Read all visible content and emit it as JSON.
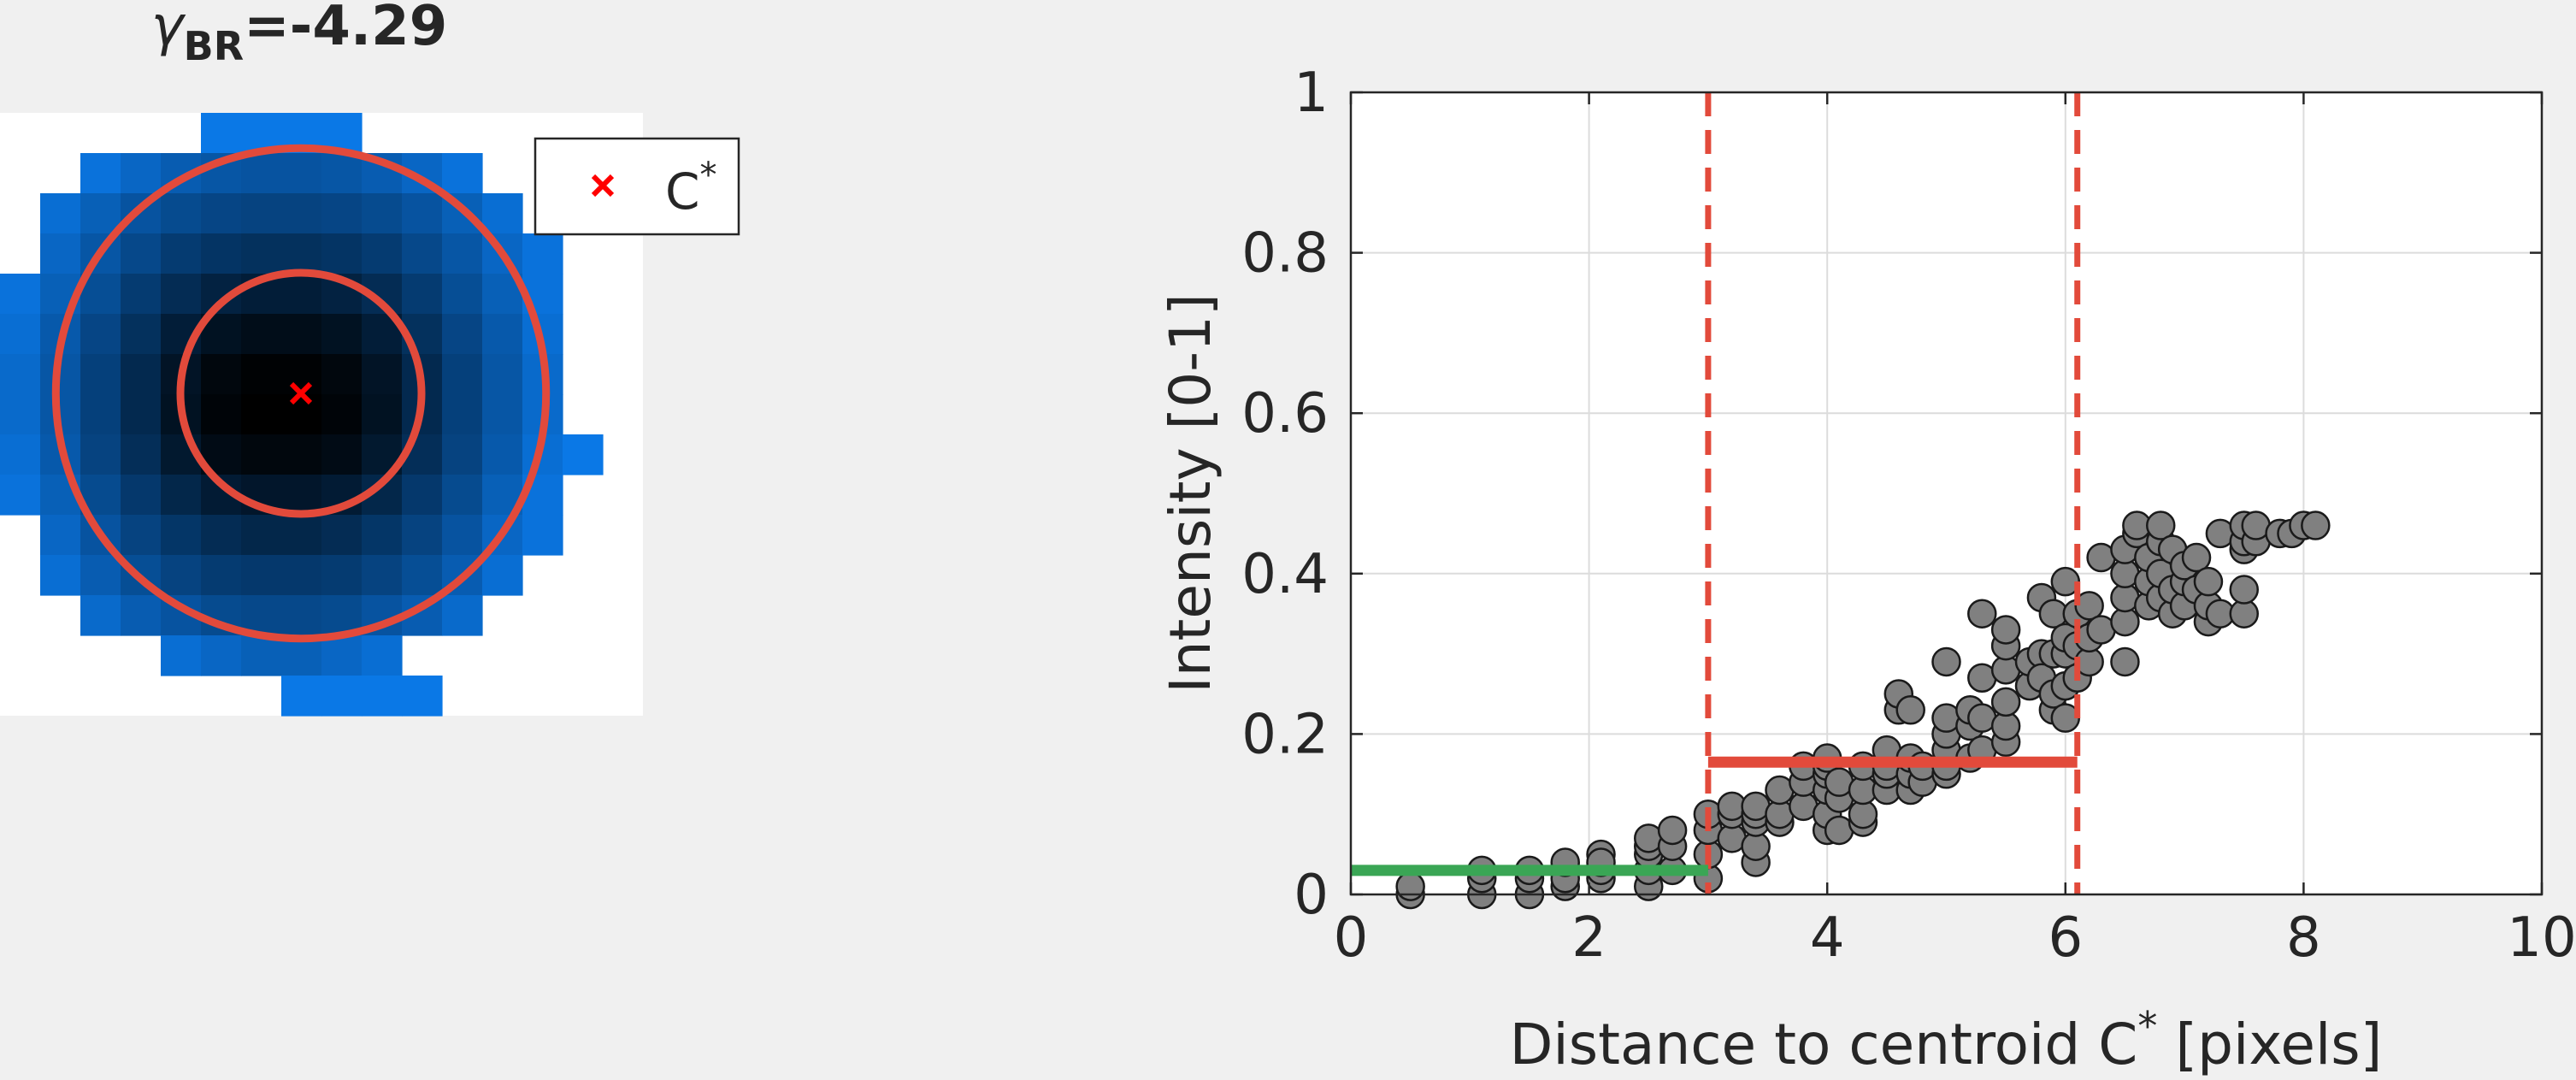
{
  "chart_data": [
    {
      "type": "heatmap",
      "title_symbol": "γ",
      "title_subscript": "BR",
      "title_value": "=-4.29",
      "legend_entries": [
        {
          "marker": "x",
          "color": "#ff0000",
          "label": "C",
          "label_sup": "*"
        }
      ],
      "colormap": [
        "#ffffff",
        "#0a78e6",
        "#000000"
      ],
      "centroid": {
        "row": 7,
        "col": 7.5
      },
      "inner_circle_radius": 3,
      "outer_circle_radius": 6.1,
      "circle_color": "#e24a3b",
      "grid": [
        [
          0,
          0,
          0,
          0,
          0,
          0.12,
          0.12,
          0.12,
          0.12,
          0,
          0,
          0,
          0,
          0,
          0,
          0
        ],
        [
          0,
          0,
          0.14,
          0.2,
          0.26,
          0.3,
          0.32,
          0.32,
          0.3,
          0.26,
          0.2,
          0.14,
          0,
          0,
          0,
          0
        ],
        [
          0,
          0.16,
          0.24,
          0.32,
          0.38,
          0.42,
          0.44,
          0.44,
          0.42,
          0.38,
          0.32,
          0.24,
          0.16,
          0,
          0,
          0
        ],
        [
          0,
          0.2,
          0.3,
          0.4,
          0.5,
          0.55,
          0.58,
          0.58,
          0.55,
          0.5,
          0.4,
          0.3,
          0.2,
          0.14,
          0,
          0
        ],
        [
          0.14,
          0.24,
          0.36,
          0.5,
          0.62,
          0.7,
          0.74,
          0.74,
          0.7,
          0.62,
          0.5,
          0.36,
          0.24,
          0.14,
          0,
          0
        ],
        [
          0.16,
          0.28,
          0.42,
          0.58,
          0.74,
          0.84,
          0.88,
          0.88,
          0.84,
          0.74,
          0.58,
          0.42,
          0.28,
          0.16,
          0,
          0
        ],
        [
          0.18,
          0.3,
          0.46,
          0.64,
          0.82,
          0.94,
          0.98,
          0.98,
          0.94,
          0.82,
          0.64,
          0.46,
          0.3,
          0.18,
          0,
          0
        ],
        [
          0.18,
          0.3,
          0.46,
          0.64,
          0.84,
          0.96,
          1,
          1,
          0.96,
          0.84,
          0.64,
          0.46,
          0.3,
          0.18,
          0,
          0
        ],
        [
          0.16,
          0.28,
          0.44,
          0.6,
          0.78,
          0.9,
          0.94,
          0.94,
          0.9,
          0.78,
          0.6,
          0.44,
          0.28,
          0.16,
          0.12,
          0
        ],
        [
          0.14,
          0.24,
          0.38,
          0.52,
          0.66,
          0.76,
          0.8,
          0.8,
          0.76,
          0.66,
          0.52,
          0.38,
          0.24,
          0.14,
          0,
          0
        ],
        [
          0,
          0.2,
          0.32,
          0.44,
          0.54,
          0.62,
          0.66,
          0.66,
          0.62,
          0.54,
          0.44,
          0.32,
          0.2,
          0.14,
          0,
          0
        ],
        [
          0,
          0.16,
          0.26,
          0.36,
          0.44,
          0.5,
          0.52,
          0.52,
          0.5,
          0.44,
          0.36,
          0.26,
          0.16,
          0,
          0,
          0
        ],
        [
          0,
          0,
          0.18,
          0.26,
          0.32,
          0.38,
          0.4,
          0.4,
          0.38,
          0.32,
          0.26,
          0.18,
          0,
          0,
          0,
          0
        ],
        [
          0,
          0,
          0,
          0,
          0.16,
          0.2,
          0.24,
          0.24,
          0.2,
          0.16,
          0,
          0,
          0,
          0,
          0,
          0
        ],
        [
          0,
          0,
          0,
          0,
          0,
          0,
          0,
          0.12,
          0.12,
          0.12,
          0.12,
          0,
          0,
          0,
          0,
          0
        ]
      ]
    },
    {
      "type": "scatter",
      "xlabel": "Distance to centroid C",
      "xlabel_sup": "*",
      "xlabel_suffix": " [pixels]",
      "ylabel": "Intensity [0-1]",
      "xlim": [
        0,
        10
      ],
      "ylim": [
        0,
        1
      ],
      "xticks": [
        0,
        2,
        4,
        6,
        8,
        10
      ],
      "yticks": [
        0,
        0.2,
        0.4,
        0.6,
        0.8,
        1
      ],
      "xtick_labels": [
        "0",
        "2",
        "4",
        "6",
        "8",
        "10"
      ],
      "ytick_labels": [
        "0",
        "0.2",
        "0.4",
        "0.6",
        "0.8",
        "1"
      ],
      "grid": true,
      "marker_color": "#808080",
      "marker_edge": "#1a1a1a",
      "vlines": [
        {
          "x": 3.0,
          "color": "#e24a3b",
          "style": "dashed"
        },
        {
          "x": 6.1,
          "color": "#e24a3b",
          "style": "dashed"
        }
      ],
      "hsegments": [
        {
          "x0": 0,
          "x1": 3.0,
          "y": 0.03,
          "color": "#3aa655"
        },
        {
          "x0": 3.0,
          "x1": 6.1,
          "y": 0.165,
          "color": "#e24a3b"
        }
      ],
      "points": [
        [
          0.5,
          0.0
        ],
        [
          0.5,
          0.01
        ],
        [
          1.1,
          0.0
        ],
        [
          1.1,
          0.02
        ],
        [
          1.1,
          0.03
        ],
        [
          1.5,
          0.0
        ],
        [
          1.5,
          0.02
        ],
        [
          1.5,
          0.03
        ],
        [
          1.8,
          0.01
        ],
        [
          1.8,
          0.02
        ],
        [
          1.8,
          0.04
        ],
        [
          2.1,
          0.02
        ],
        [
          2.1,
          0.03
        ],
        [
          2.1,
          0.05
        ],
        [
          2.1,
          0.04
        ],
        [
          2.5,
          0.01
        ],
        [
          2.5,
          0.03
        ],
        [
          2.5,
          0.05
        ],
        [
          2.5,
          0.06
        ],
        [
          2.5,
          0.07
        ],
        [
          2.7,
          0.03
        ],
        [
          2.7,
          0.06
        ],
        [
          2.7,
          0.08
        ],
        [
          3.0,
          0.02
        ],
        [
          3.0,
          0.05
        ],
        [
          3.0,
          0.08
        ],
        [
          3.0,
          0.1
        ],
        [
          3.2,
          0.07
        ],
        [
          3.2,
          0.1
        ],
        [
          3.2,
          0.11
        ],
        [
          3.4,
          0.04
        ],
        [
          3.4,
          0.06
        ],
        [
          3.4,
          0.09
        ],
        [
          3.4,
          0.1
        ],
        [
          3.4,
          0.11
        ],
        [
          3.6,
          0.09
        ],
        [
          3.6,
          0.1
        ],
        [
          3.6,
          0.13
        ],
        [
          3.8,
          0.11
        ],
        [
          3.8,
          0.14
        ],
        [
          3.8,
          0.16
        ],
        [
          4.0,
          0.08
        ],
        [
          4.0,
          0.1
        ],
        [
          4.0,
          0.13
        ],
        [
          4.0,
          0.15
        ],
        [
          4.0,
          0.16
        ],
        [
          4.0,
          0.17
        ],
        [
          4.1,
          0.08
        ],
        [
          4.1,
          0.12
        ],
        [
          4.1,
          0.14
        ],
        [
          4.3,
          0.09
        ],
        [
          4.3,
          0.1
        ],
        [
          4.3,
          0.13
        ],
        [
          4.3,
          0.16
        ],
        [
          4.5,
          0.13
        ],
        [
          4.5,
          0.15
        ],
        [
          4.5,
          0.16
        ],
        [
          4.5,
          0.18
        ],
        [
          4.6,
          0.23
        ],
        [
          4.6,
          0.25
        ],
        [
          4.7,
          0.13
        ],
        [
          4.7,
          0.15
        ],
        [
          4.7,
          0.17
        ],
        [
          4.7,
          0.23
        ],
        [
          4.8,
          0.14
        ],
        [
          4.8,
          0.16
        ],
        [
          5.0,
          0.15
        ],
        [
          5.0,
          0.16
        ],
        [
          5.0,
          0.18
        ],
        [
          5.0,
          0.2
        ],
        [
          5.0,
          0.22
        ],
        [
          5.0,
          0.29
        ],
        [
          5.2,
          0.17
        ],
        [
          5.2,
          0.21
        ],
        [
          5.2,
          0.23
        ],
        [
          5.3,
          0.18
        ],
        [
          5.3,
          0.22
        ],
        [
          5.3,
          0.27
        ],
        [
          5.3,
          0.35
        ],
        [
          5.5,
          0.19
        ],
        [
          5.5,
          0.21
        ],
        [
          5.5,
          0.24
        ],
        [
          5.5,
          0.28
        ],
        [
          5.5,
          0.31
        ],
        [
          5.5,
          0.33
        ],
        [
          5.7,
          0.26
        ],
        [
          5.7,
          0.29
        ],
        [
          5.8,
          0.37
        ],
        [
          5.8,
          0.3
        ],
        [
          5.8,
          0.27
        ],
        [
          5.9,
          0.23
        ],
        [
          5.9,
          0.25
        ],
        [
          5.9,
          0.3
        ],
        [
          5.9,
          0.35
        ],
        [
          6.0,
          0.22
        ],
        [
          6.0,
          0.26
        ],
        [
          6.0,
          0.3
        ],
        [
          6.0,
          0.32
        ],
        [
          6.0,
          0.39
        ],
        [
          6.1,
          0.27
        ],
        [
          6.1,
          0.31
        ],
        [
          6.1,
          0.35
        ],
        [
          6.2,
          0.29
        ],
        [
          6.2,
          0.32
        ],
        [
          6.2,
          0.36
        ],
        [
          6.3,
          0.33
        ],
        [
          6.3,
          0.42
        ],
        [
          6.5,
          0.29
        ],
        [
          6.5,
          0.34
        ],
        [
          6.5,
          0.37
        ],
        [
          6.5,
          0.4
        ],
        [
          6.5,
          0.43
        ],
        [
          6.6,
          0.45
        ],
        [
          6.6,
          0.46
        ],
        [
          6.7,
          0.36
        ],
        [
          6.7,
          0.39
        ],
        [
          6.7,
          0.42
        ],
        [
          6.8,
          0.37
        ],
        [
          6.8,
          0.4
        ],
        [
          6.8,
          0.44
        ],
        [
          6.8,
          0.46
        ],
        [
          6.9,
          0.35
        ],
        [
          6.9,
          0.38
        ],
        [
          6.9,
          0.43
        ],
        [
          7.0,
          0.36
        ],
        [
          7.0,
          0.39
        ],
        [
          7.0,
          0.41
        ],
        [
          7.1,
          0.38
        ],
        [
          7.1,
          0.42
        ],
        [
          7.2,
          0.34
        ],
        [
          7.2,
          0.36
        ],
        [
          7.2,
          0.39
        ],
        [
          7.3,
          0.35
        ],
        [
          7.3,
          0.45
        ],
        [
          7.5,
          0.35
        ],
        [
          7.5,
          0.38
        ],
        [
          7.5,
          0.43
        ],
        [
          7.5,
          0.44
        ],
        [
          7.5,
          0.46
        ],
        [
          7.6,
          0.44
        ],
        [
          7.6,
          0.46
        ],
        [
          7.8,
          0.45
        ],
        [
          7.9,
          0.45
        ],
        [
          8.0,
          0.46
        ],
        [
          8.1,
          0.46
        ]
      ]
    }
  ]
}
